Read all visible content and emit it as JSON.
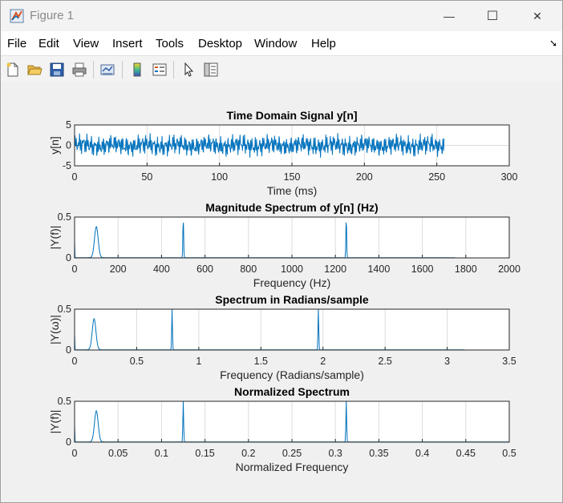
{
  "window": {
    "title": "Figure 1",
    "controls": {
      "minimize": "—",
      "maximize": "☐",
      "close": "✕"
    }
  },
  "menu": {
    "items": [
      "File",
      "Edit",
      "View",
      "Insert",
      "Tools",
      "Desktop",
      "Window",
      "Help"
    ],
    "dock": "➘"
  },
  "toolbar": {
    "buttons": [
      "new-figure",
      "open-file",
      "save",
      "print",
      "link-plot",
      "insert-colorbar",
      "insert-legend",
      "edit-plot",
      "property-inspector"
    ]
  },
  "chart_data": [
    {
      "type": "line",
      "title": "Time Domain Signal y[n]",
      "xlabel": "Time (ms)",
      "ylabel": "y[n]",
      "xlim": [
        0,
        300
      ],
      "ylim": [
        -5,
        5
      ],
      "xticks": [
        "0",
        "50",
        "100",
        "150",
        "200",
        "250",
        "300"
      ],
      "yticks": [
        "-5",
        "0",
        "5"
      ],
      "x_range": [
        0,
        255
      ],
      "amplitude_range": [
        -3,
        3
      ],
      "color": "#0072BD",
      "grid": true
    },
    {
      "type": "line",
      "title": "Magnitude Spectrum of y[n] (Hz)",
      "xlabel": "Frequency (Hz)",
      "ylabel": "|Y(f)|",
      "xlim": [
        0,
        2000
      ],
      "ylim": [
        0,
        0.5
      ],
      "xticks": [
        "0",
        "200",
        "400",
        "600",
        "800",
        "1000",
        "1200",
        "1400",
        "1600",
        "1800",
        "2000"
      ],
      "yticks": [
        "0",
        "0.5"
      ],
      "peaks": [
        {
          "x": 100,
          "y": 0.38
        },
        {
          "x": 500,
          "y": 0.5
        },
        {
          "x": 1250,
          "y": 0.5
        }
      ],
      "x_end": 1750,
      "color": "#0072BD",
      "grid": true
    },
    {
      "type": "line",
      "title": "Spectrum in Radians/sample",
      "xlabel": "Frequency (Radians/sample)",
      "ylabel": "|Y(ω)|",
      "xlim": [
        0,
        3.5
      ],
      "ylim": [
        0,
        0.5
      ],
      "xticks": [
        "0",
        "0.5",
        "1",
        "1.5",
        "2",
        "2.5",
        "3",
        "3.5"
      ],
      "yticks": [
        "0",
        "0.5"
      ],
      "peaks": [
        {
          "x": 0.157,
          "y": 0.38
        },
        {
          "x": 0.785,
          "y": 0.5
        },
        {
          "x": 1.963,
          "y": 0.5
        }
      ],
      "x_end": 3.14,
      "color": "#0072BD",
      "grid": true
    },
    {
      "type": "line",
      "title": "Normalized Spectrum",
      "xlabel": "Normalized Frequency",
      "ylabel": "|Y(f)|",
      "xlim": [
        0,
        0.5
      ],
      "ylim": [
        0,
        0.5
      ],
      "xticks": [
        "0",
        "0.05",
        "0.1",
        "0.15",
        "0.2",
        "0.25",
        "0.3",
        "0.35",
        "0.4",
        "0.45",
        "0.5"
      ],
      "yticks": [
        "0",
        "0.5"
      ],
      "peaks": [
        {
          "x": 0.025,
          "y": 0.38
        },
        {
          "x": 0.125,
          "y": 0.5
        },
        {
          "x": 0.3125,
          "y": 0.5
        }
      ],
      "x_end": 0.5,
      "color": "#0072BD",
      "grid": true
    }
  ]
}
